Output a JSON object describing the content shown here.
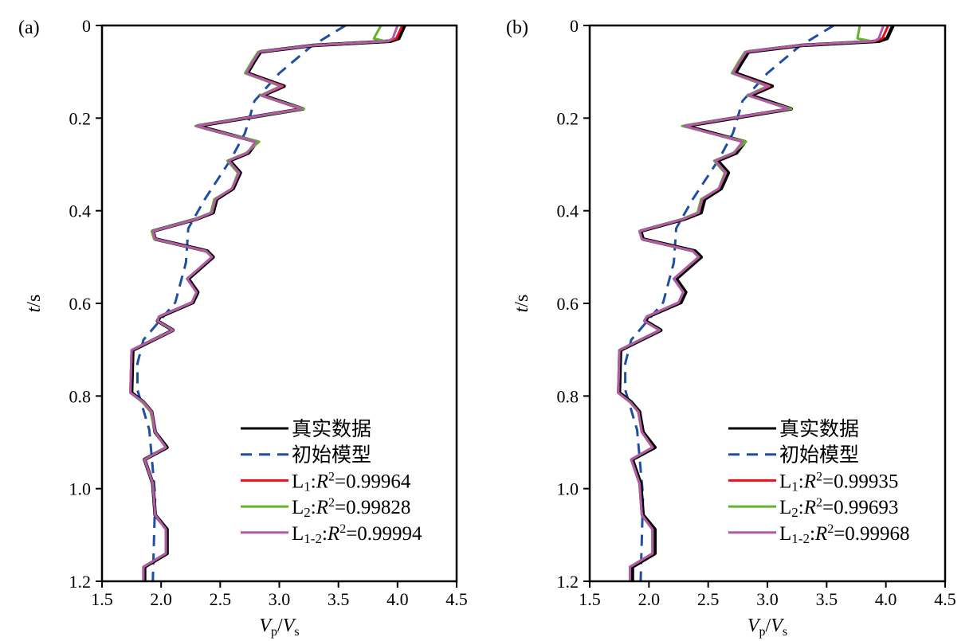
{
  "colors": {
    "true": "#000000",
    "initial": "#1f4fa3",
    "L1": "#e8101a",
    "L2": "#63b32e",
    "L12": "#b05aa8"
  },
  "chart_data": [
    {
      "type": "line",
      "panel_label": "(a)",
      "xlabel": {
        "v1": "V",
        "s1": "p",
        "slash": "/",
        "v2": "V",
        "s2": "s"
      },
      "ylabel": {
        "var": "t",
        "unit": "/s"
      },
      "xlim": [
        1.5,
        4.5
      ],
      "ylim": [
        0,
        1.2
      ],
      "y_inverted": true,
      "xticks": [
        "1.5",
        "2.0",
        "2.5",
        "3.0",
        "3.5",
        "4.0",
        "4.5"
      ],
      "yticks": [
        "0",
        "0.2",
        "0.4",
        "0.6",
        "0.8",
        "1.0",
        "1.2"
      ],
      "legend_position": "bottom-right",
      "legend": [
        {
          "key": "true",
          "label": "真实数据"
        },
        {
          "key": "initial",
          "label": "初始模型"
        },
        {
          "key": "L1",
          "prefix": "L",
          "sub": "1",
          "sep": ":",
          "metric": "R",
          "exp": "2",
          "eq": "=",
          "value": "0.99964"
        },
        {
          "key": "L2",
          "prefix": "L",
          "sub": "2",
          "sep": ":",
          "metric": "R",
          "exp": "2",
          "eq": "=",
          "value": "0.99828"
        },
        {
          "key": "L12",
          "prefix": "L",
          "sub": "1-2",
          "sep": ":",
          "metric": "R",
          "exp": "2",
          "eq": "=",
          "value": "0.99994"
        }
      ],
      "t": [
        0,
        0.028,
        0.034,
        0.043,
        0.057,
        0.077,
        0.103,
        0.131,
        0.151,
        0.18,
        0.217,
        0.251,
        0.275,
        0.292,
        0.318,
        0.352,
        0.375,
        0.404,
        0.418,
        0.444,
        0.461,
        0.487,
        0.5,
        0.547,
        0.576,
        0.598,
        0.629,
        0.638,
        0.658,
        0.701,
        0.793,
        0.813,
        0.834,
        0.878,
        0.911,
        0.937,
        0.989,
        1.057,
        1.088,
        1.14,
        1.169,
        1.2
      ],
      "series": {
        "true": [
          4.06,
          4.01,
          3.94,
          3.29,
          2.84,
          2.79,
          2.73,
          3.04,
          2.86,
          3.2,
          2.31,
          2.81,
          2.74,
          2.58,
          2.67,
          2.61,
          2.47,
          2.44,
          2.3,
          1.93,
          1.95,
          2.39,
          2.44,
          2.23,
          2.31,
          2.27,
          1.99,
          1.97,
          2.1,
          1.76,
          1.75,
          1.85,
          1.92,
          1.95,
          2.05,
          1.86,
          1.93,
          1.95,
          2.05,
          2.05,
          1.86,
          1.86
        ],
        "L1": [
          4.04,
          3.99,
          3.92,
          3.28,
          2.83,
          2.78,
          2.72,
          3.03,
          2.85,
          3.19,
          2.3,
          2.8,
          2.73,
          2.57,
          2.66,
          2.6,
          2.46,
          2.43,
          2.3,
          1.93,
          1.95,
          2.38,
          2.43,
          2.22,
          2.3,
          2.26,
          1.98,
          1.97,
          2.1,
          1.75,
          1.74,
          1.85,
          1.92,
          1.95,
          2.04,
          1.86,
          1.93,
          1.95,
          2.04,
          2.04,
          1.85,
          1.85
        ],
        "L2": [
          3.86,
          3.8,
          3.9,
          3.28,
          2.82,
          2.77,
          2.71,
          3.01,
          2.84,
          3.21,
          2.29,
          2.83,
          2.72,
          2.56,
          2.65,
          2.6,
          2.45,
          2.42,
          2.29,
          1.92,
          1.94,
          2.38,
          2.43,
          2.22,
          2.3,
          2.26,
          1.98,
          1.97,
          2.1,
          1.75,
          1.74,
          1.84,
          1.91,
          1.95,
          2.04,
          1.86,
          1.93,
          1.95,
          2.04,
          2.04,
          1.85,
          1.85
        ],
        "L12": [
          4.0,
          3.96,
          3.92,
          3.28,
          2.83,
          2.78,
          2.72,
          3.02,
          2.85,
          3.19,
          2.3,
          2.8,
          2.73,
          2.57,
          2.66,
          2.6,
          2.46,
          2.43,
          2.3,
          1.93,
          1.95,
          2.38,
          2.43,
          2.22,
          2.3,
          2.26,
          1.98,
          1.97,
          2.1,
          1.75,
          1.74,
          1.85,
          1.92,
          1.95,
          2.04,
          1.86,
          1.93,
          1.95,
          2.04,
          2.04,
          1.85,
          1.85
        ]
      },
      "initial_t": [
        0,
        0.045,
        0.103,
        0.163,
        0.232,
        0.289,
        0.375,
        0.438,
        0.512,
        0.598,
        0.679,
        0.73,
        0.787,
        0.873,
        1.016,
        1.2
      ],
      "initial": [
        3.56,
        3.27,
        3.0,
        2.79,
        2.71,
        2.59,
        2.37,
        2.23,
        2.21,
        2.12,
        1.85,
        1.8,
        1.8,
        1.9,
        1.95,
        1.93
      ]
    },
    {
      "type": "line",
      "panel_label": "(b)",
      "xlabel": {
        "v1": "V",
        "s1": "p",
        "slash": "/",
        "v2": "V",
        "s2": "s"
      },
      "ylabel": {
        "var": "t",
        "unit": "/s"
      },
      "xlim": [
        1.5,
        4.5
      ],
      "ylim": [
        0,
        1.2
      ],
      "y_inverted": true,
      "xticks": [
        "1.5",
        "2.0",
        "2.5",
        "3.0",
        "3.5",
        "4.0",
        "4.5"
      ],
      "yticks": [
        "0",
        "0.2",
        "0.4",
        "0.6",
        "0.8",
        "1.0",
        "1.2"
      ],
      "legend_position": "bottom-right",
      "legend": [
        {
          "key": "true",
          "label": "真实数据"
        },
        {
          "key": "initial",
          "label": "初始模型"
        },
        {
          "key": "L1",
          "prefix": "L",
          "sub": "1",
          "sep": ":",
          "metric": "R",
          "exp": "2",
          "eq": "=",
          "value": "0.99935"
        },
        {
          "key": "L2",
          "prefix": "L",
          "sub": "2",
          "sep": ":",
          "metric": "R",
          "exp": "2",
          "eq": "=",
          "value": "0.99693"
        },
        {
          "key": "L12",
          "prefix": "L",
          "sub": "1-2",
          "sep": ":",
          "metric": "R",
          "exp": "2",
          "eq": "=",
          "value": "0.99968"
        }
      ],
      "t": [
        0,
        0.028,
        0.034,
        0.043,
        0.057,
        0.077,
        0.103,
        0.131,
        0.151,
        0.18,
        0.217,
        0.251,
        0.275,
        0.292,
        0.318,
        0.352,
        0.375,
        0.404,
        0.418,
        0.444,
        0.461,
        0.487,
        0.5,
        0.547,
        0.576,
        0.598,
        0.629,
        0.638,
        0.658,
        0.701,
        0.793,
        0.813,
        0.834,
        0.878,
        0.911,
        0.937,
        0.989,
        1.057,
        1.088,
        1.14,
        1.169,
        1.2
      ],
      "series": {
        "true": [
          4.06,
          4.01,
          3.94,
          3.29,
          2.84,
          2.79,
          2.73,
          3.04,
          2.86,
          3.2,
          2.31,
          2.81,
          2.74,
          2.58,
          2.67,
          2.61,
          2.47,
          2.44,
          2.3,
          1.93,
          1.95,
          2.39,
          2.44,
          2.23,
          2.31,
          2.27,
          1.99,
          1.97,
          2.1,
          1.76,
          1.75,
          1.85,
          1.92,
          1.95,
          2.05,
          1.86,
          1.93,
          1.95,
          2.05,
          2.05,
          1.86,
          1.86
        ],
        "L1": [
          4.02,
          3.97,
          3.9,
          3.27,
          2.82,
          2.77,
          2.71,
          3.02,
          2.84,
          3.18,
          2.3,
          2.79,
          2.72,
          2.56,
          2.65,
          2.59,
          2.45,
          2.42,
          2.29,
          1.92,
          1.94,
          2.37,
          2.42,
          2.21,
          2.29,
          2.25,
          1.98,
          1.96,
          2.09,
          1.75,
          1.74,
          1.84,
          1.91,
          1.94,
          2.03,
          1.85,
          1.92,
          1.94,
          2.03,
          2.03,
          1.84,
          1.84
        ],
        "L2": [
          3.78,
          3.76,
          3.88,
          3.27,
          2.81,
          2.76,
          2.7,
          3.0,
          2.83,
          3.2,
          2.28,
          2.82,
          2.71,
          2.55,
          2.64,
          2.59,
          2.44,
          2.41,
          2.28,
          1.92,
          1.94,
          2.37,
          2.42,
          2.21,
          2.29,
          2.25,
          1.98,
          1.96,
          2.09,
          1.75,
          1.74,
          1.84,
          1.91,
          1.94,
          2.03,
          1.85,
          1.92,
          1.94,
          2.03,
          2.03,
          1.84,
          1.84
        ],
        "L12": [
          3.98,
          3.94,
          3.9,
          3.27,
          2.82,
          2.77,
          2.71,
          3.01,
          2.84,
          3.18,
          2.3,
          2.79,
          2.72,
          2.56,
          2.65,
          2.59,
          2.45,
          2.42,
          2.29,
          1.92,
          1.94,
          2.37,
          2.42,
          2.21,
          2.29,
          2.25,
          1.98,
          1.96,
          2.09,
          1.75,
          1.74,
          1.84,
          1.91,
          1.94,
          2.03,
          1.85,
          1.92,
          1.94,
          2.03,
          2.03,
          1.84,
          1.84
        ]
      },
      "initial_t": [
        0,
        0.045,
        0.103,
        0.163,
        0.232,
        0.289,
        0.375,
        0.438,
        0.512,
        0.598,
        0.679,
        0.73,
        0.787,
        0.873,
        1.016,
        1.2
      ],
      "initial": [
        3.56,
        3.27,
        3.0,
        2.79,
        2.71,
        2.59,
        2.37,
        2.23,
        2.21,
        2.12,
        1.85,
        1.8,
        1.8,
        1.9,
        1.95,
        1.93
      ]
    }
  ]
}
